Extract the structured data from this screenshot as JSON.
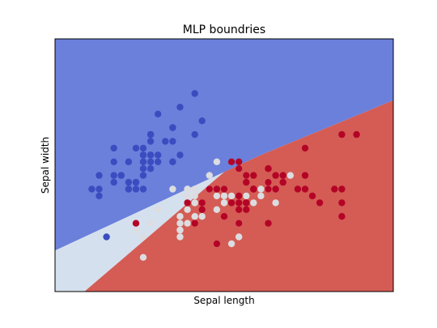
{
  "chart_data": {
    "type": "scatter",
    "title": "MLP boundries",
    "xlabel": "Sepal length",
    "ylabel": "Sepal width",
    "xlim": [
      3.8,
      8.4
    ],
    "ylim": [
      1.5,
      5.2
    ],
    "xticks": [],
    "yticks": [],
    "grid": false,
    "legend": "none",
    "regions": [
      {
        "class": 0,
        "color": "#6b80db",
        "polygon": [
          [
            3.8,
            5.2
          ],
          [
            8.4,
            5.2
          ],
          [
            8.4,
            4.3
          ],
          [
            6.6,
            3.5
          ],
          [
            5.4,
            2.9
          ],
          [
            3.8,
            2.1
          ]
        ]
      },
      {
        "class": 1,
        "color": "#d5e0ee",
        "polygon": [
          [
            3.8,
            2.1
          ],
          [
            5.4,
            2.9
          ],
          [
            6.1,
            3.25
          ],
          [
            4.2,
            1.5
          ],
          [
            3.8,
            1.5
          ]
        ]
      },
      {
        "class": 2,
        "color": "#d45c55",
        "polygon": [
          [
            4.2,
            1.5
          ],
          [
            6.1,
            3.25
          ],
          [
            6.6,
            3.5
          ],
          [
            8.4,
            4.3
          ],
          [
            8.4,
            1.5
          ]
        ]
      }
    ],
    "series": [
      {
        "class": 0,
        "color": "#3b4cc0",
        "points": [
          [
            5.1,
            3.5
          ],
          [
            4.9,
            3.0
          ],
          [
            4.7,
            3.2
          ],
          [
            4.6,
            3.1
          ],
          [
            5.0,
            3.6
          ],
          [
            5.4,
            3.9
          ],
          [
            4.6,
            3.4
          ],
          [
            5.0,
            3.4
          ],
          [
            4.4,
            2.9
          ],
          [
            4.9,
            3.1
          ],
          [
            5.4,
            3.7
          ],
          [
            4.8,
            3.4
          ],
          [
            4.8,
            3.0
          ],
          [
            4.3,
            3.0
          ],
          [
            5.8,
            4.0
          ],
          [
            5.7,
            4.4
          ],
          [
            5.4,
            3.9
          ],
          [
            5.1,
            3.5
          ],
          [
            5.7,
            3.8
          ],
          [
            5.1,
            3.8
          ],
          [
            5.4,
            3.4
          ],
          [
            5.1,
            3.7
          ],
          [
            4.6,
            3.6
          ],
          [
            5.1,
            3.3
          ],
          [
            4.8,
            3.4
          ],
          [
            5.0,
            3.0
          ],
          [
            5.0,
            3.4
          ],
          [
            5.2,
            3.5
          ],
          [
            5.2,
            3.4
          ],
          [
            4.7,
            3.2
          ],
          [
            4.8,
            3.1
          ],
          [
            5.4,
            3.4
          ],
          [
            5.2,
            4.1
          ],
          [
            5.5,
            4.2
          ],
          [
            4.9,
            3.1
          ],
          [
            5.0,
            3.2
          ],
          [
            5.5,
            3.5
          ],
          [
            4.9,
            3.6
          ],
          [
            4.4,
            3.0
          ],
          [
            5.1,
            3.4
          ],
          [
            5.0,
            3.5
          ],
          [
            4.5,
            2.3
          ],
          [
            4.4,
            3.2
          ],
          [
            5.0,
            3.5
          ],
          [
            5.1,
            3.8
          ],
          [
            4.8,
            3.0
          ],
          [
            5.1,
            3.8
          ],
          [
            4.6,
            3.2
          ],
          [
            5.3,
            3.7
          ],
          [
            5.0,
            3.3
          ]
        ]
      },
      {
        "class": 1,
        "color": "#dcdde0",
        "points": [
          [
            7.0,
            3.2
          ],
          [
            6.4,
            3.2
          ],
          [
            6.9,
            3.1
          ],
          [
            5.5,
            2.3
          ],
          [
            6.5,
            2.8
          ],
          [
            5.7,
            2.8
          ],
          [
            6.3,
            3.3
          ],
          [
            4.9,
            2.4
          ],
          [
            6.6,
            2.9
          ],
          [
            5.2,
            2.7
          ],
          [
            5.0,
            2.0
          ],
          [
            5.9,
            3.0
          ],
          [
            6.0,
            2.2
          ],
          [
            6.1,
            2.9
          ],
          [
            5.6,
            2.9
          ],
          [
            6.7,
            3.1
          ],
          [
            5.6,
            3.0
          ],
          [
            5.8,
            2.7
          ],
          [
            6.2,
            2.2
          ],
          [
            5.6,
            2.5
          ],
          [
            5.9,
            3.2
          ],
          [
            6.1,
            2.8
          ],
          [
            6.3,
            2.5
          ],
          [
            6.1,
            2.8
          ],
          [
            6.4,
            2.9
          ],
          [
            6.6,
            3.0
          ],
          [
            6.8,
            2.8
          ],
          [
            6.7,
            3.0
          ],
          [
            6.0,
            2.9
          ],
          [
            5.7,
            2.6
          ],
          [
            5.5,
            2.4
          ],
          [
            5.5,
            2.4
          ],
          [
            5.8,
            2.7
          ],
          [
            6.0,
            2.7
          ],
          [
            5.4,
            3.0
          ],
          [
            6.0,
            3.4
          ],
          [
            6.7,
            3.1
          ],
          [
            6.3,
            2.3
          ],
          [
            5.6,
            3.0
          ],
          [
            5.5,
            2.5
          ],
          [
            5.5,
            2.6
          ],
          [
            6.1,
            3.0
          ],
          [
            5.8,
            2.6
          ],
          [
            5.0,
            2.3
          ],
          [
            5.6,
            2.7
          ],
          [
            5.7,
            3.0
          ],
          [
            5.7,
            2.9
          ],
          [
            6.2,
            2.9
          ],
          [
            5.1,
            2.5
          ],
          [
            5.7,
            2.8
          ]
        ]
      },
      {
        "class": 2,
        "color": "#b40426",
        "points": [
          [
            6.3,
            3.3
          ],
          [
            5.8,
            2.7
          ],
          [
            7.1,
            3.0
          ],
          [
            6.3,
            2.9
          ],
          [
            6.5,
            3.0
          ],
          [
            7.6,
            3.0
          ],
          [
            4.9,
            2.5
          ],
          [
            7.3,
            2.9
          ],
          [
            6.7,
            2.5
          ],
          [
            7.2,
            3.6
          ],
          [
            6.5,
            3.2
          ],
          [
            6.4,
            2.7
          ],
          [
            6.8,
            3.0
          ],
          [
            5.7,
            2.5
          ],
          [
            5.8,
            2.8
          ],
          [
            6.4,
            3.2
          ],
          [
            6.5,
            3.0
          ],
          [
            7.7,
            3.8
          ],
          [
            7.7,
            2.6
          ],
          [
            6.0,
            2.2
          ],
          [
            6.9,
            3.2
          ],
          [
            5.6,
            2.8
          ],
          [
            7.7,
            2.8
          ],
          [
            6.3,
            2.7
          ],
          [
            6.7,
            3.3
          ],
          [
            7.2,
            3.2
          ],
          [
            6.2,
            2.8
          ],
          [
            6.1,
            3.0
          ],
          [
            6.4,
            2.8
          ],
          [
            7.2,
            3.0
          ],
          [
            7.4,
            2.8
          ],
          [
            7.9,
            3.8
          ],
          [
            6.4,
            2.8
          ],
          [
            6.3,
            2.8
          ],
          [
            6.1,
            2.6
          ],
          [
            7.7,
            3.0
          ],
          [
            6.3,
            3.4
          ],
          [
            6.4,
            3.1
          ],
          [
            6.0,
            3.0
          ],
          [
            6.9,
            3.1
          ],
          [
            6.7,
            3.1
          ],
          [
            6.9,
            3.1
          ],
          [
            5.8,
            2.7
          ],
          [
            6.8,
            3.2
          ],
          [
            6.7,
            3.3
          ],
          [
            6.7,
            3.0
          ],
          [
            6.3,
            2.5
          ],
          [
            6.5,
            3.0
          ],
          [
            6.2,
            3.4
          ],
          [
            5.9,
            3.0
          ]
        ]
      }
    ]
  }
}
